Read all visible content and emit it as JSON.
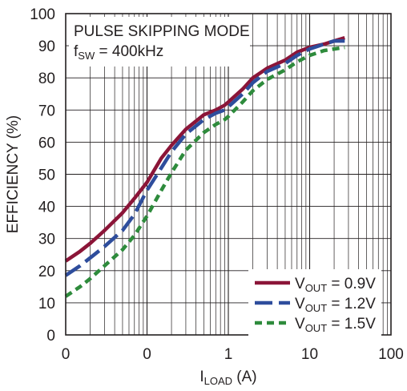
{
  "chart_data": {
    "type": "line",
    "annotation": {
      "title": "PULSE SKIPPING MODE",
      "freq_main": "f",
      "freq_sub": "SW",
      "freq_value": " = 400kHz"
    },
    "xlabel": {
      "main": "I",
      "sub": "LOAD",
      "unit": " (A)"
    },
    "ylabel": "EFFICIENCY (%)",
    "x_scale": "log",
    "xlim": [
      0.01,
      100
    ],
    "ylim": [
      0,
      100
    ],
    "x_ticks": [
      {
        "value": 0.01,
        "label": "0"
      },
      {
        "value": 0.1,
        "label": "0"
      },
      {
        "value": 1,
        "label": "1"
      },
      {
        "value": 10,
        "label": "10"
      },
      {
        "value": 100,
        "label": "100"
      }
    ],
    "y_ticks": [
      0,
      10,
      20,
      30,
      40,
      50,
      60,
      70,
      80,
      90,
      100
    ],
    "grid": true,
    "legend_position": "bottom-right",
    "series": [
      {
        "name_main": "V",
        "name_sub": "OUT",
        "name_value": " = 0.9V",
        "color": "#8b1538",
        "dash": "solid",
        "x": [
          0.01,
          0.015,
          0.02,
          0.03,
          0.05,
          0.07,
          0.1,
          0.15,
          0.2,
          0.3,
          0.5,
          0.7,
          0.9,
          1,
          1.5,
          2,
          3,
          5,
          7,
          10,
          15,
          20,
          27
        ],
        "y": [
          23,
          26,
          28.5,
          32.5,
          38,
          42.5,
          47.5,
          55,
          59,
          64,
          68.5,
          70,
          71.5,
          72.5,
          76.5,
          80,
          83,
          85.5,
          88,
          89.5,
          90.5,
          91.5,
          92.5
        ]
      },
      {
        "name_main": "V",
        "name_sub": "OUT",
        "name_value": " = 1.2V",
        "color": "#2e4d9c",
        "dash": "long-dash",
        "x": [
          0.01,
          0.015,
          0.02,
          0.03,
          0.05,
          0.07,
          0.1,
          0.15,
          0.2,
          0.3,
          0.5,
          0.7,
          0.9,
          1,
          1.5,
          2,
          3,
          5,
          7,
          10,
          15,
          20,
          27
        ],
        "y": [
          18.5,
          21.5,
          24,
          27.5,
          32.5,
          37.5,
          45,
          52,
          57,
          62.5,
          67,
          69,
          70,
          71,
          75,
          78.5,
          82,
          84.5,
          87,
          89,
          90.5,
          91.5,
          91.5
        ]
      },
      {
        "name_main": "V",
        "name_sub": "OUT",
        "name_value": " = 1.5V",
        "color": "#2e8b3c",
        "dash": "short-dash",
        "x": [
          0.01,
          0.015,
          0.02,
          0.03,
          0.05,
          0.07,
          0.1,
          0.15,
          0.2,
          0.3,
          0.5,
          0.7,
          0.9,
          1,
          1.5,
          2,
          3,
          5,
          7,
          10,
          15,
          20,
          27
        ],
        "y": [
          12,
          15,
          17.5,
          21.5,
          26.5,
          31,
          37,
          45,
          50.5,
          57.5,
          63,
          65.5,
          67,
          68,
          72.5,
          76,
          79.5,
          82.5,
          85,
          87,
          88.5,
          89,
          89.5
        ]
      }
    ]
  }
}
